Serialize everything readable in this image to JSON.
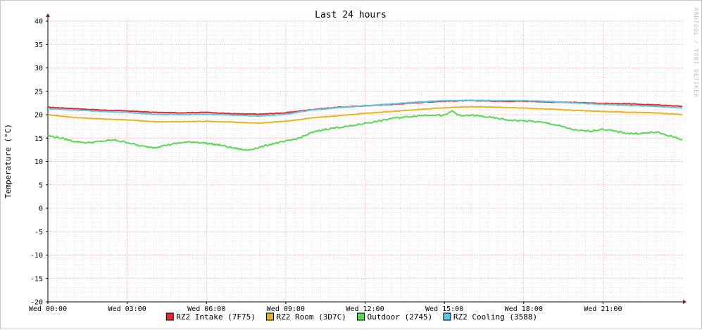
{
  "chart_data": {
    "type": "line",
    "title": "Last 24 hours",
    "ylabel": "Temperature (°C)",
    "xlabel": "",
    "ylim": [
      -20,
      40
    ],
    "yticks": [
      40,
      35,
      30,
      25,
      20,
      15,
      10,
      5,
      0,
      -5,
      -10,
      -15,
      -20
    ],
    "xlim_hours": [
      0,
      24
    ],
    "xticks": [
      {
        "hour": 0,
        "label": "Wed 00:00"
      },
      {
        "hour": 3,
        "label": "Wed 03:00"
      },
      {
        "hour": 6,
        "label": "Wed 06:00"
      },
      {
        "hour": 9,
        "label": "Wed 09:00"
      },
      {
        "hour": 12,
        "label": "Wed 12:00"
      },
      {
        "hour": 15,
        "label": "Wed 15:00"
      },
      {
        "hour": 18,
        "label": "Wed 18:00"
      },
      {
        "hour": 21,
        "label": "Wed 21:00"
      }
    ],
    "grid": true,
    "legend_position": "bottom",
    "watermark": "RRDTOOL / TOBI OETIKER",
    "series": [
      {
        "name": "RZ2 Intake (7F75)",
        "color": "#e8282a",
        "points": [
          [
            0,
            21.6
          ],
          [
            1,
            21.3
          ],
          [
            2,
            21.0
          ],
          [
            3,
            20.8
          ],
          [
            4,
            20.5
          ],
          [
            5,
            20.4
          ],
          [
            6,
            20.5
          ],
          [
            7,
            20.2
          ],
          [
            8,
            20.1
          ],
          [
            9,
            20.4
          ],
          [
            10,
            21.1
          ],
          [
            11,
            21.6
          ],
          [
            12,
            21.9
          ],
          [
            13,
            22.2
          ],
          [
            14,
            22.6
          ],
          [
            15,
            22.9
          ],
          [
            16,
            23.0
          ],
          [
            17,
            22.9
          ],
          [
            18,
            22.9
          ],
          [
            19,
            22.7
          ],
          [
            20,
            22.6
          ],
          [
            21,
            22.4
          ],
          [
            22,
            22.3
          ],
          [
            23,
            22.1
          ],
          [
            24,
            21.8
          ]
        ]
      },
      {
        "name": "RZ2 Room (3D7C)",
        "color": "#e6b422",
        "points": [
          [
            0,
            20.0
          ],
          [
            1,
            19.4
          ],
          [
            2,
            19.1
          ],
          [
            3,
            18.9
          ],
          [
            4,
            18.5
          ],
          [
            5,
            18.5
          ],
          [
            6,
            18.6
          ],
          [
            7,
            18.4
          ],
          [
            8,
            18.2
          ],
          [
            9,
            18.6
          ],
          [
            10,
            19.3
          ],
          [
            11,
            19.8
          ],
          [
            12,
            20.3
          ],
          [
            13,
            20.7
          ],
          [
            14,
            21.1
          ],
          [
            15,
            21.5
          ],
          [
            16,
            21.7
          ],
          [
            17,
            21.6
          ],
          [
            18,
            21.4
          ],
          [
            19,
            21.2
          ],
          [
            20,
            20.9
          ],
          [
            21,
            20.7
          ],
          [
            22,
            20.5
          ],
          [
            23,
            20.4
          ],
          [
            24,
            20.0
          ]
        ]
      },
      {
        "name": "Outdoor (2745)",
        "color": "#57d857",
        "points": [
          [
            0,
            15.5
          ],
          [
            0.5,
            15.0
          ],
          [
            1,
            14.3
          ],
          [
            1.5,
            14.0
          ],
          [
            2,
            14.3
          ],
          [
            2.5,
            14.6
          ],
          [
            3,
            14.1
          ],
          [
            3.5,
            13.3
          ],
          [
            4,
            13.0
          ],
          [
            4.5,
            13.5
          ],
          [
            5,
            14.0
          ],
          [
            5.5,
            14.2
          ],
          [
            6,
            13.9
          ],
          [
            6.5,
            13.5
          ],
          [
            7,
            12.9
          ],
          [
            7.5,
            12.4
          ],
          [
            8,
            13.0
          ],
          [
            8.5,
            13.8
          ],
          [
            9,
            14.3
          ],
          [
            9.5,
            15.0
          ],
          [
            10,
            16.2
          ],
          [
            10.5,
            16.9
          ],
          [
            11,
            17.3
          ],
          [
            11.5,
            17.6
          ],
          [
            12,
            18.2
          ],
          [
            12.5,
            18.6
          ],
          [
            13,
            19.2
          ],
          [
            13.5,
            19.5
          ],
          [
            14,
            19.8
          ],
          [
            14.5,
            20.0
          ],
          [
            15,
            19.8
          ],
          [
            15.3,
            20.8
          ],
          [
            15.6,
            19.7
          ],
          [
            16,
            19.9
          ],
          [
            16.5,
            19.6
          ],
          [
            17,
            19.2
          ],
          [
            17.5,
            18.8
          ],
          [
            18,
            18.7
          ],
          [
            18.5,
            18.5
          ],
          [
            19,
            18.1
          ],
          [
            19.5,
            17.4
          ],
          [
            20,
            16.6
          ],
          [
            20.5,
            16.5
          ],
          [
            21,
            16.9
          ],
          [
            21.5,
            16.4
          ],
          [
            22,
            16.0
          ],
          [
            22.5,
            16.0
          ],
          [
            23,
            16.3
          ],
          [
            23.5,
            15.5
          ],
          [
            24,
            14.7
          ]
        ]
      },
      {
        "name": "RZ2 Cooling (3588)",
        "color": "#55c8e8",
        "points": [
          [
            0,
            21.3
          ],
          [
            1,
            21.0
          ],
          [
            2,
            20.7
          ],
          [
            3,
            20.5
          ],
          [
            4,
            20.1
          ],
          [
            5,
            20.0
          ],
          [
            6,
            20.1
          ],
          [
            7,
            19.9
          ],
          [
            8,
            19.7
          ],
          [
            9,
            20.1
          ],
          [
            10,
            21.0
          ],
          [
            11,
            21.5
          ],
          [
            12,
            21.9
          ],
          [
            13,
            22.3
          ],
          [
            14,
            22.7
          ],
          [
            15,
            23.0
          ],
          [
            16,
            23.1
          ],
          [
            17,
            23.0
          ],
          [
            18,
            23.0
          ],
          [
            19,
            22.8
          ],
          [
            20,
            22.5
          ],
          [
            21,
            22.2
          ],
          [
            22,
            22.0
          ],
          [
            23,
            21.8
          ],
          [
            24,
            21.4
          ]
        ]
      }
    ]
  }
}
